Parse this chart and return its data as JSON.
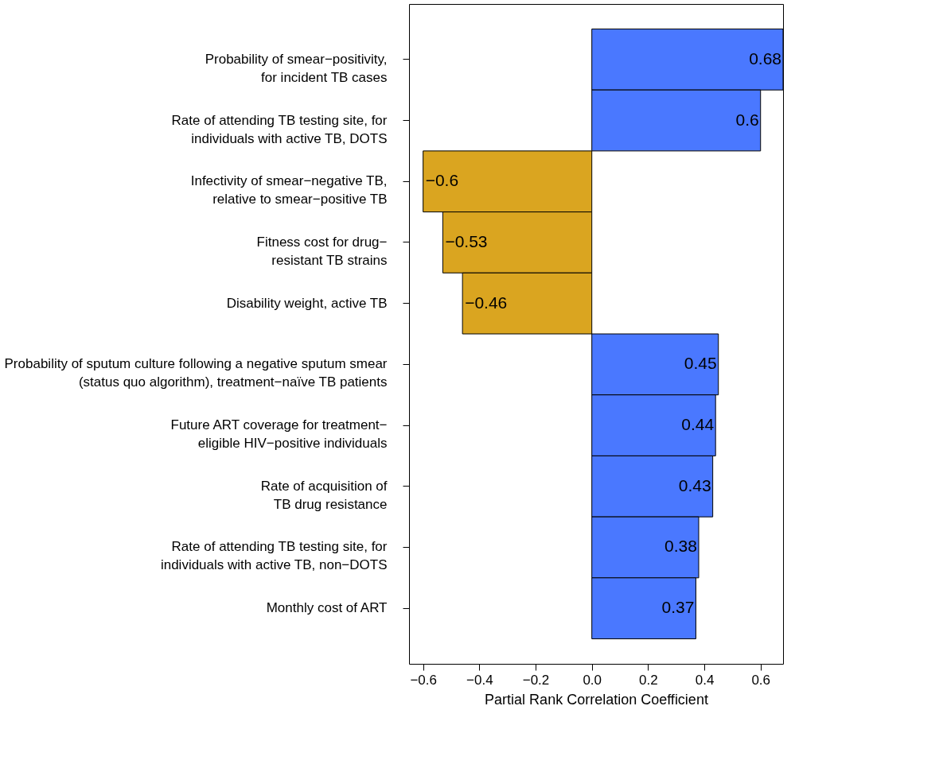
{
  "chart_data": {
    "type": "bar",
    "orientation": "horizontal",
    "xlabel": "Partial Rank Correlation Coefficient",
    "categories": [
      "Probability of smear−positivity,\nfor incident TB cases",
      "Rate of attending TB testing site, for\nindividuals with active TB, DOTS",
      "Infectivity of smear−negative TB,\nrelative to smear−positive TB",
      "Fitness cost for drug−\nresistant TB strains",
      "Disability weight, active TB",
      "Probability of sputum culture following a negative sputum smear\n(status quo algorithm), treatment−naïve TB patients",
      "Future ART coverage for treatment−\neligible HIV−positive individuals",
      "Rate of acquisition of\nTB drug resistance",
      "Rate of attending TB testing site, for\nindividuals with active TB, non−DOTS",
      "Monthly cost of ART"
    ],
    "values": [
      0.68,
      0.6,
      -0.6,
      -0.53,
      -0.46,
      0.45,
      0.44,
      0.43,
      0.38,
      0.37
    ],
    "value_labels": [
      "0.68",
      "0.6",
      "−0.6",
      "−0.53",
      "−0.46",
      "0.45",
      "0.44",
      "0.43",
      "0.38",
      "0.37"
    ],
    "colors": [
      "#4a78ff",
      "#4a78ff",
      "#daa520",
      "#daa520",
      "#daa520",
      "#4a78ff",
      "#4a78ff",
      "#4a78ff",
      "#4a78ff",
      "#4a78ff"
    ],
    "xlim": [
      -0.65,
      0.68
    ],
    "xticks": [
      {
        "value": -0.6,
        "label": "−0.6"
      },
      {
        "value": -0.4,
        "label": "−0.4"
      },
      {
        "value": -0.2,
        "label": "−0.2"
      },
      {
        "value": 0,
        "label": "0.0"
      },
      0.2,
      0.4,
      0.6
    ],
    "grid": false
  }
}
